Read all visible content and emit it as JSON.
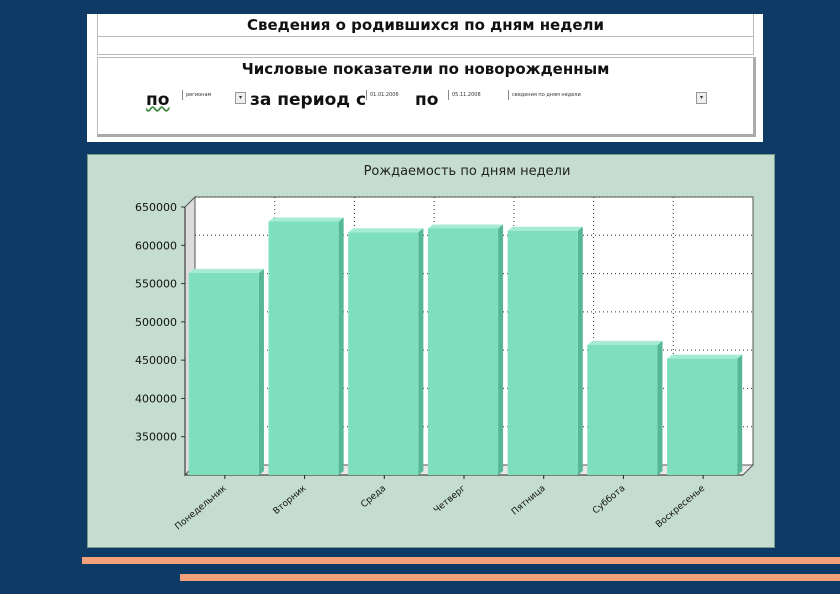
{
  "page": {
    "title": "Сведения о родившихся по дням недели",
    "subtitle": "Числовые показатели по новорожденным"
  },
  "filters": {
    "by_label": "по",
    "by_value": "регионам",
    "period_label": "за период с",
    "date_from": "01.01.2006",
    "to_label": "по",
    "date_to": "05.11.2008",
    "report_value": "сведения по дням недели",
    "dropdown_glyph": "▾"
  },
  "chart_data": {
    "type": "bar",
    "title": "Рождаемость по дням недели",
    "categories": [
      "Понедельник",
      "Вторник",
      "Среда",
      "Четверг",
      "Пятница",
      "Суббота",
      "Воскресенье"
    ],
    "values": [
      564000,
      631000,
      617000,
      622000,
      619000,
      470000,
      452000
    ],
    "yticks": [
      350000,
      400000,
      450000,
      500000,
      550000,
      600000,
      650000
    ],
    "ylim": [
      300000,
      650000
    ],
    "xlabel": "",
    "ylabel": "",
    "grid": true,
    "bar_color": "#7ddfbd",
    "bar_side_color": "#55b797",
    "bar_top_color": "#a6ecd4",
    "background_color": "#c5ddd0"
  },
  "colors": {
    "page_background": "#0e3a66",
    "accent_lines": "#f2a17a"
  }
}
